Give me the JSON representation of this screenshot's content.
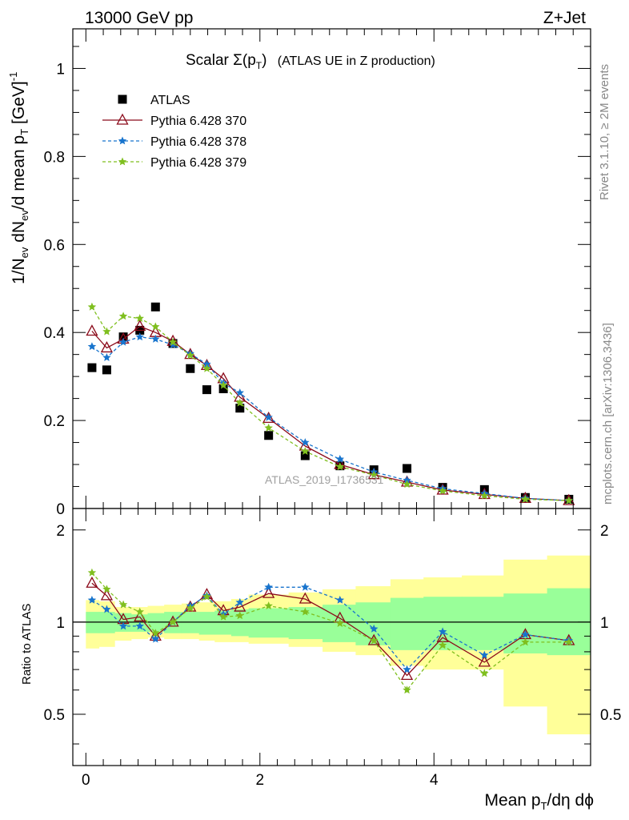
{
  "header": {
    "energy": "13000 GeV pp",
    "process": "Z+Jet"
  },
  "title": {
    "main": "Scalar Σ(p",
    "main_sub": "T",
    "main_close": ")",
    "extra": "(ATLAS UE in Z production)"
  },
  "side_labels": {
    "rivet": "Rivet 3.1.10, ≥ 2M events",
    "mcplots": "mcplots.cern.ch [arXiv:1306.3436]"
  },
  "watermark": "ATLAS_2019_I1736531",
  "axes": {
    "ylabel_main": "1/N_ev dN_ev/d mean p_T [GeV]^-1",
    "ylabel_ratio": "Ratio to ATLAS",
    "xlabel": "Mean p_T/dη dϕ"
  },
  "colors": {
    "atlas": "#000000",
    "p370": "#8b0a1a",
    "p378": "#1874cd",
    "p379": "#7fbf1f",
    "band_inner": "#99ff99",
    "band_outer": "#ffff99"
  },
  "chart_data": [
    {
      "type": "scatter",
      "panel": "main",
      "title": "Scalar Σ(pT) (ATLAS UE in Z production)",
      "xlim": [
        -0.15,
        5.8
      ],
      "ylim": [
        0,
        1.09
      ],
      "xticks": [
        0,
        2,
        4
      ],
      "yticks": [
        0,
        0.2,
        0.4,
        0.6,
        0.8,
        1
      ],
      "ytick_labels": [
        "0",
        "0.2",
        "0.4",
        "0.6",
        "0.8",
        "1"
      ],
      "x": [
        0.07,
        0.24,
        0.43,
        0.62,
        0.8,
        1.0,
        1.2,
        1.39,
        1.58,
        1.77,
        2.1,
        2.52,
        2.92,
        3.31,
        3.69,
        4.1,
        4.58,
        5.05,
        5.55
      ],
      "series": [
        {
          "name": "ATLAS",
          "marker": "square",
          "values": [
            0.32,
            0.315,
            0.39,
            0.405,
            0.458,
            0.375,
            0.318,
            0.27,
            0.272,
            0.228,
            0.166,
            0.12,
            0.097,
            0.088,
            0.091,
            0.048,
            0.043,
            0.025,
            0.021
          ]
        },
        {
          "name": "Pythia 6.428 370",
          "marker": "triangle",
          "line": "solid",
          "values": [
            0.403,
            0.365,
            0.385,
            0.414,
            0.4,
            0.38,
            0.35,
            0.325,
            0.295,
            0.253,
            0.205,
            0.142,
            0.1,
            0.077,
            0.06,
            0.042,
            0.032,
            0.023,
            0.018
          ]
        },
        {
          "name": "Pythia 6.428 378",
          "marker": "star",
          "line": "dashed",
          "values": [
            0.368,
            0.343,
            0.378,
            0.39,
            0.385,
            0.372,
            0.352,
            0.328,
            0.285,
            0.263,
            0.207,
            0.15,
            0.112,
            0.083,
            0.064,
            0.045,
            0.034,
            0.023,
            0.018
          ]
        },
        {
          "name": "Pythia 6.428 379",
          "marker": "star",
          "line": "dashed",
          "values": [
            0.458,
            0.402,
            0.437,
            0.432,
            0.413,
            0.378,
            0.348,
            0.318,
            0.28,
            0.24,
            0.183,
            0.13,
            0.095,
            0.076,
            0.055,
            0.04,
            0.029,
            0.021,
            0.018
          ]
        }
      ],
      "legend_position": "top-left"
    },
    {
      "type": "line",
      "panel": "ratio",
      "xlim": [
        -0.15,
        5.8
      ],
      "ylim": [
        0.34,
        2.35
      ],
      "yticks": [
        0.5,
        1,
        2
      ],
      "ytick_labels": [
        "0.5",
        "1",
        "2"
      ],
      "xticks": [
        0,
        2,
        4
      ],
      "xtick_labels": [
        "0",
        "2",
        "4"
      ],
      "bin_edges": [
        0,
        0.15,
        0.33,
        0.52,
        0.71,
        0.9,
        1.1,
        1.3,
        1.48,
        1.67,
        1.87,
        2.33,
        2.72,
        3.1,
        3.5,
        3.88,
        4.32,
        4.8,
        5.3,
        5.8
      ],
      "band_inner": [
        [
          0.92,
          1.08
        ],
        [
          0.92,
          1.08
        ],
        [
          0.93,
          1.07
        ],
        [
          0.93,
          1.06
        ],
        [
          0.93,
          1.07
        ],
        [
          0.92,
          1.08
        ],
        [
          0.92,
          1.08
        ],
        [
          0.91,
          1.08
        ],
        [
          0.91,
          1.09
        ],
        [
          0.9,
          1.1
        ],
        [
          0.89,
          1.11
        ],
        [
          0.88,
          1.12
        ],
        [
          0.86,
          1.14
        ],
        [
          0.84,
          1.16
        ],
        [
          0.81,
          1.2
        ],
        [
          0.81,
          1.21
        ],
        [
          0.81,
          1.21
        ],
        [
          0.79,
          1.24
        ],
        [
          0.78,
          1.29
        ]
      ],
      "band_outer": [
        [
          0.82,
          1.18
        ],
        [
          0.83,
          1.17
        ],
        [
          0.87,
          1.12
        ],
        [
          0.88,
          1.12
        ],
        [
          0.89,
          1.13
        ],
        [
          0.88,
          1.14
        ],
        [
          0.88,
          1.15
        ],
        [
          0.87,
          1.16
        ],
        [
          0.86,
          1.17
        ],
        [
          0.86,
          1.19
        ],
        [
          0.85,
          1.23
        ],
        [
          0.83,
          1.25
        ],
        [
          0.8,
          1.28
        ],
        [
          0.78,
          1.31
        ],
        [
          0.72,
          1.38
        ],
        [
          0.7,
          1.4
        ],
        [
          0.7,
          1.42
        ],
        [
          0.53,
          1.6
        ],
        [
          0.43,
          1.65
        ]
      ],
      "series": [
        {
          "name": "Pythia 6.428 370",
          "values": [
            1.34,
            1.22,
            1.02,
            1.04,
            0.9,
            1.0,
            1.12,
            1.23,
            1.09,
            1.12,
            1.24,
            1.19,
            1.03,
            0.87,
            0.67,
            0.89,
            0.74,
            0.91,
            0.87
          ]
        },
        {
          "name": "Pythia 6.428 378",
          "values": [
            1.18,
            1.1,
            0.97,
            0.97,
            0.88,
            1.0,
            1.13,
            1.22,
            1.06,
            1.16,
            1.3,
            1.3,
            1.18,
            0.95,
            0.7,
            0.93,
            0.78,
            0.91,
            0.87
          ]
        },
        {
          "name": "Pythia 6.428 379",
          "values": [
            1.45,
            1.28,
            1.14,
            1.08,
            0.92,
            1.0,
            1.11,
            1.21,
            1.04,
            1.05,
            1.13,
            1.08,
            0.99,
            0.87,
            0.6,
            0.84,
            0.68,
            0.86,
            0.86
          ]
        }
      ]
    }
  ]
}
